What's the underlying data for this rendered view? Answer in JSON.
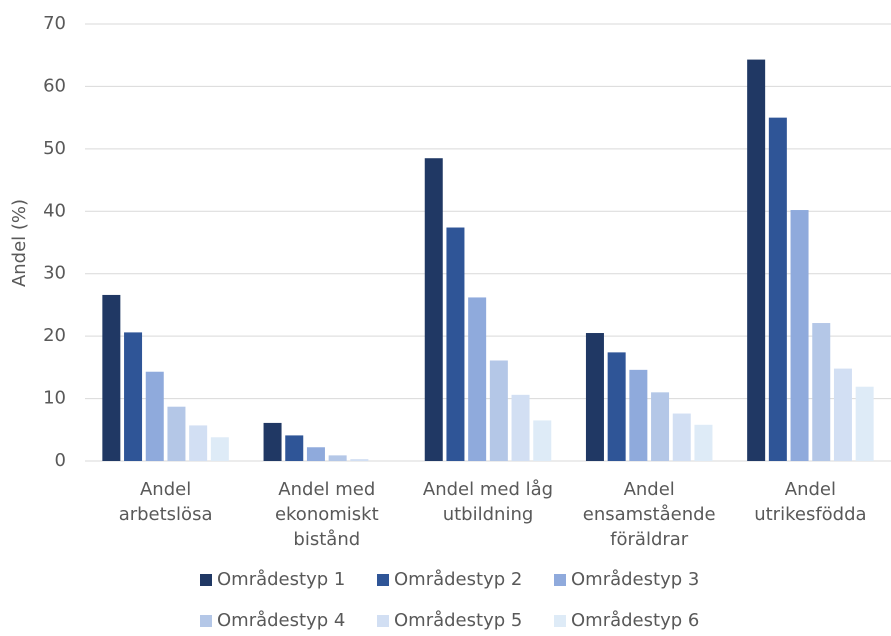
{
  "chart_data": {
    "type": "bar",
    "y_label": "Andel (%)",
    "categories": [
      [
        "Andel",
        "arbetslösa"
      ],
      [
        "Andel med",
        "ekonomiskt",
        "bistånd"
      ],
      [
        "Andel med låg",
        "utbildning"
      ],
      [
        "Andel",
        "ensamstående",
        "föräldrar"
      ],
      [
        "Andel",
        "utrikesfödda"
      ]
    ],
    "series": [
      {
        "name": "Områdestyp 1",
        "color": "#203864",
        "values": [
          26.6,
          6.1,
          48.5,
          20.5,
          64.3
        ]
      },
      {
        "name": "Områdestyp 2",
        "color": "#2f5597",
        "values": [
          20.6,
          4.1,
          37.4,
          17.4,
          55.0
        ]
      },
      {
        "name": "Områdestyp 3",
        "color": "#8faadc",
        "values": [
          14.3,
          2.2,
          26.2,
          14.6,
          40.2
        ]
      },
      {
        "name": "Områdestyp 4",
        "color": "#b4c7e7",
        "values": [
          8.7,
          0.9,
          16.1,
          11.0,
          22.1
        ]
      },
      {
        "name": "Områdestyp 5",
        "color": "#d2dff3",
        "values": [
          5.7,
          0.3,
          10.6,
          7.6,
          14.8
        ]
      },
      {
        "name": "Områdestyp 6",
        "color": "#deebf7",
        "values": [
          3.8,
          0,
          6.5,
          5.8,
          11.9
        ]
      }
    ],
    "ylim": [
      0,
      70
    ],
    "yticks": [
      0,
      10,
      20,
      30,
      40,
      50,
      60,
      70
    ],
    "grid": true
  }
}
